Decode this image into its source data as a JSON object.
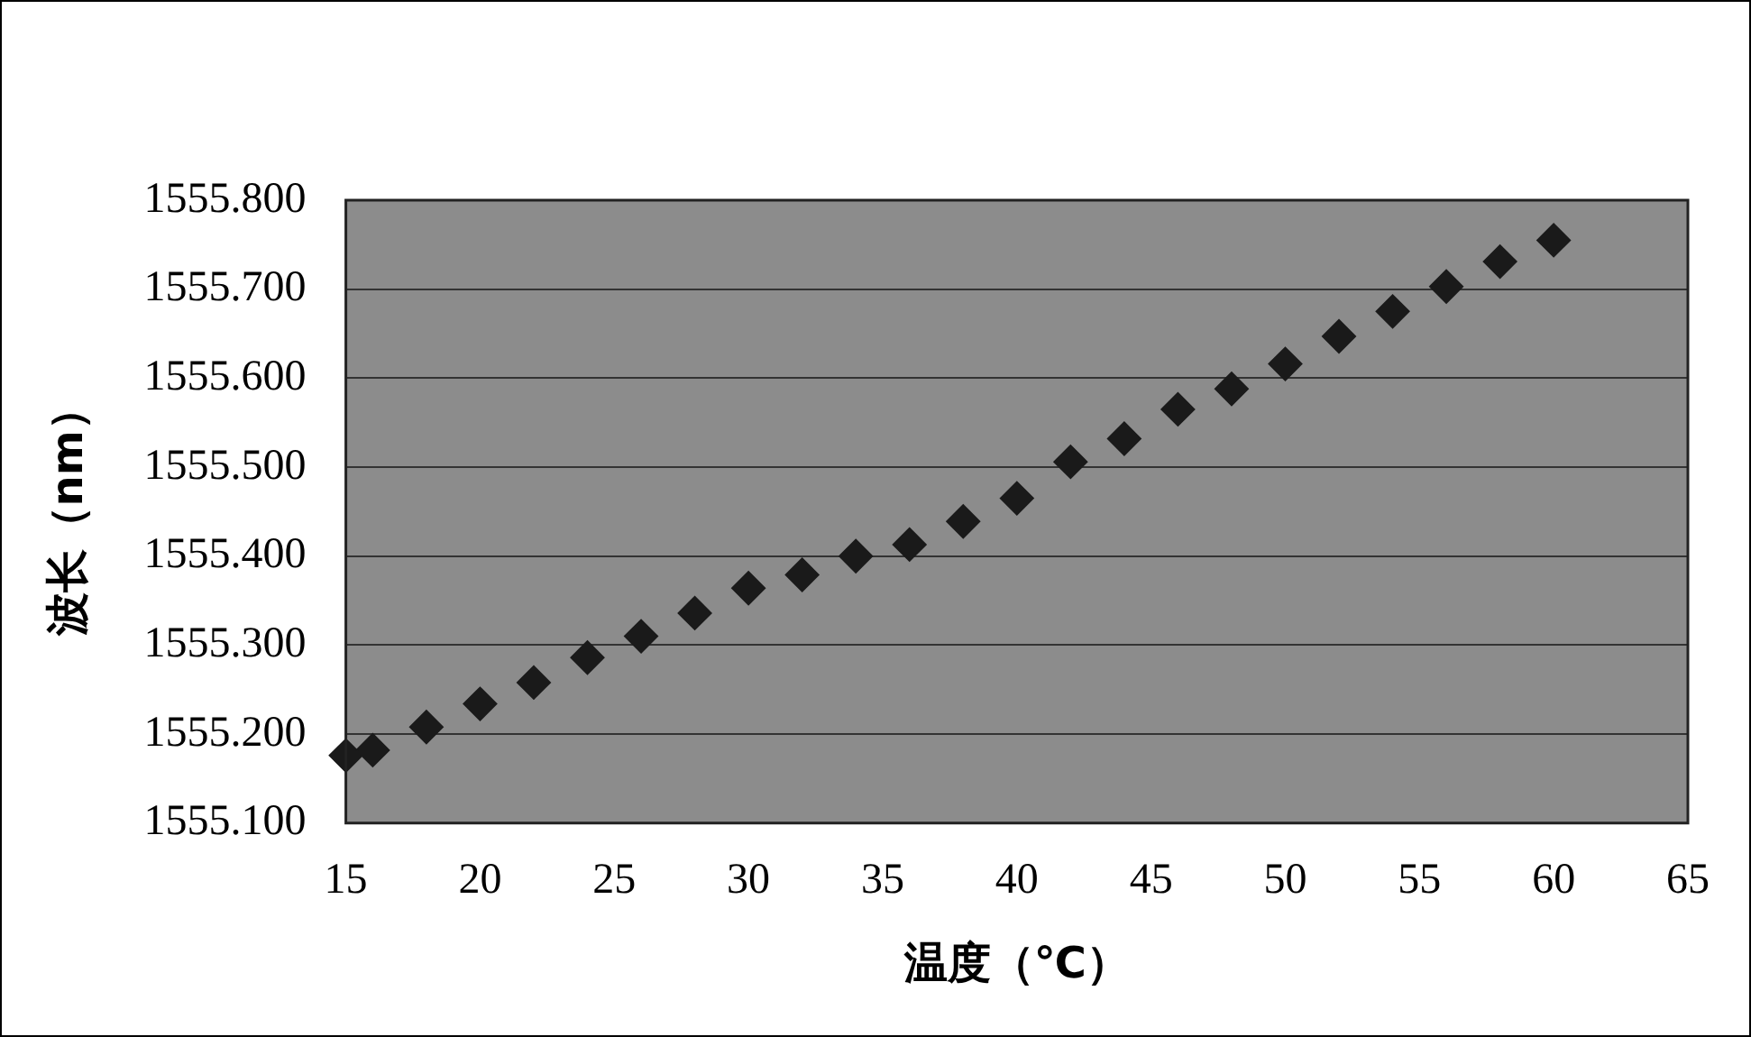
{
  "chart_data": {
    "type": "scatter",
    "xlabel": "温度（℃）",
    "ylabel": "波长（nm）",
    "x": [
      15,
      16,
      18,
      20,
      22,
      24,
      26,
      28,
      30,
      32,
      34,
      36,
      38,
      40,
      42,
      44,
      46,
      48,
      50,
      52,
      54,
      56,
      58,
      60
    ],
    "series": [
      {
        "color": "#1a1a1a",
        "values": [
          1555.176,
          1555.182,
          1555.208,
          1555.234,
          1555.258,
          1555.286,
          1555.31,
          1555.336,
          1555.364,
          1555.379,
          1555.4,
          1555.413,
          1555.439,
          1555.465,
          1555.506,
          1555.532,
          1555.565,
          1555.588,
          1555.616,
          1555.647,
          1555.675,
          1555.703,
          1555.731,
          1555.755
        ]
      }
    ],
    "xlim": [
      15,
      65
    ],
    "xticks": [
      15,
      20,
      25,
      30,
      35,
      40,
      45,
      50,
      55,
      60,
      65
    ],
    "ylim": [
      1555.1,
      1555.8
    ],
    "yticks": [
      {
        "value": 1555.1,
        "label": "1555.100"
      },
      {
        "value": 1555.2,
        "label": "1555.200"
      },
      {
        "value": 1555.3,
        "label": "1555.300"
      },
      {
        "value": 1555.4,
        "label": "1555.400"
      },
      {
        "value": 1555.5,
        "label": "1555.500"
      },
      {
        "value": 1555.6,
        "label": "1555.600"
      },
      {
        "value": 1555.7,
        "label": "1555.700"
      },
      {
        "value": 1555.8,
        "label": "1555.800"
      }
    ],
    "grid": "y",
    "marker": "diamond",
    "legend": false
  }
}
